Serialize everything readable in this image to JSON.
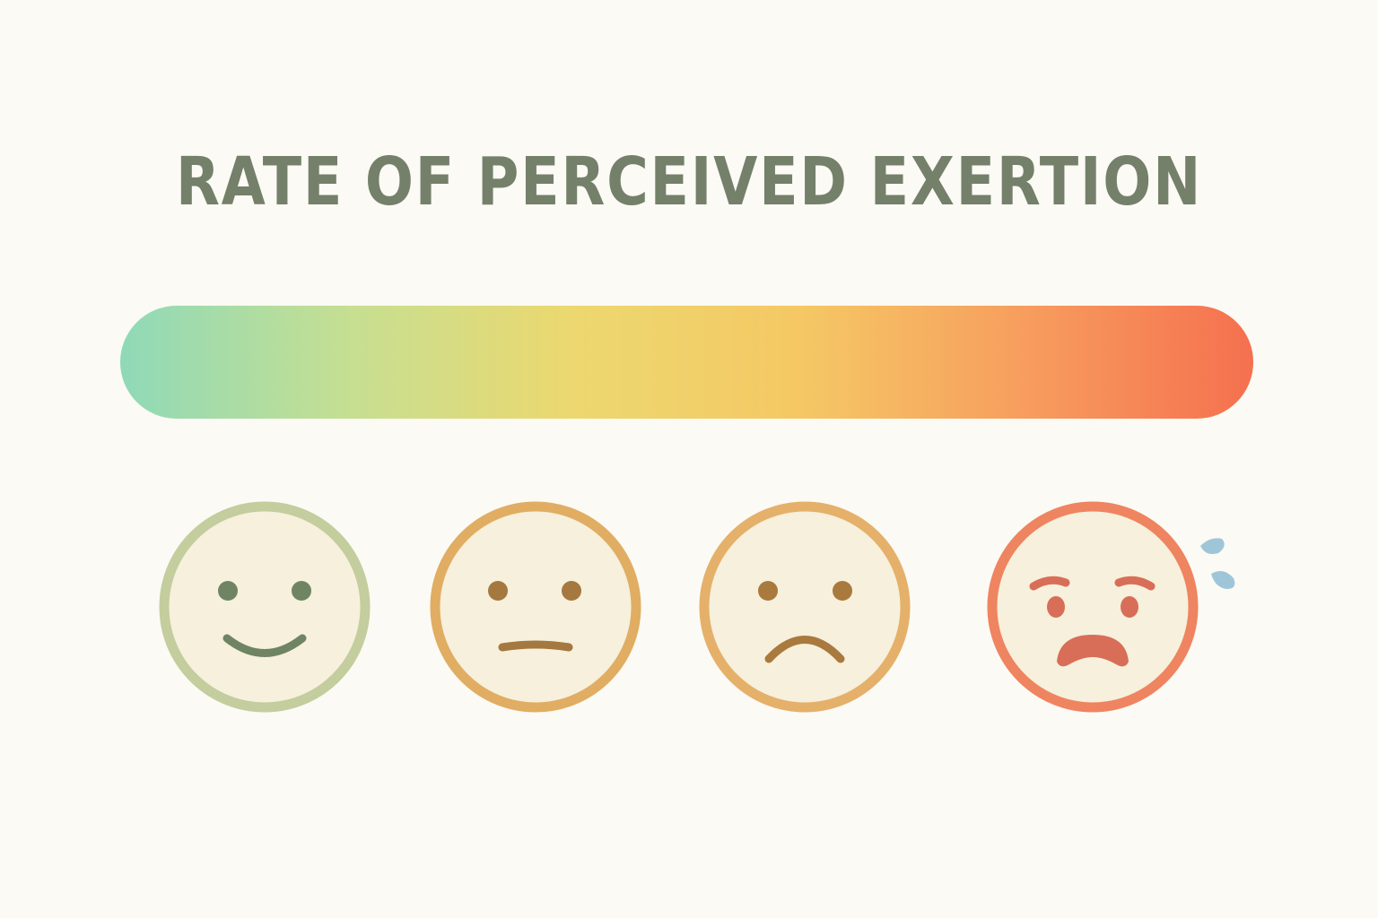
{
  "title": "RATE OF PERCEIVED EXERTION",
  "colors": {
    "background": "#fbfaf4",
    "title": "#74806a",
    "face_fill": "#f6f0dc",
    "gradient": [
      "#8fd9b8",
      "#c5df92",
      "#ecd86f",
      "#f5c864",
      "#f79d5e",
      "#f5704f"
    ],
    "faces": [
      {
        "ring": "#c3cd9d",
        "features": "#6f8463"
      },
      {
        "ring": "#e0ad62",
        "features": "#a4783f"
      },
      {
        "ring": "#e5b06a",
        "features": "#a9793e"
      },
      {
        "ring": "#ef8460",
        "features": "#d86e58"
      }
    ],
    "sweat": "#9fc6d8"
  },
  "faces": [
    {
      "name": "smiling-face-icon",
      "expression": "happy"
    },
    {
      "name": "neutral-face-icon",
      "expression": "neutral"
    },
    {
      "name": "frowning-face-icon",
      "expression": "sad"
    },
    {
      "name": "distressed-sweating-face-icon",
      "expression": "distressed"
    }
  ]
}
